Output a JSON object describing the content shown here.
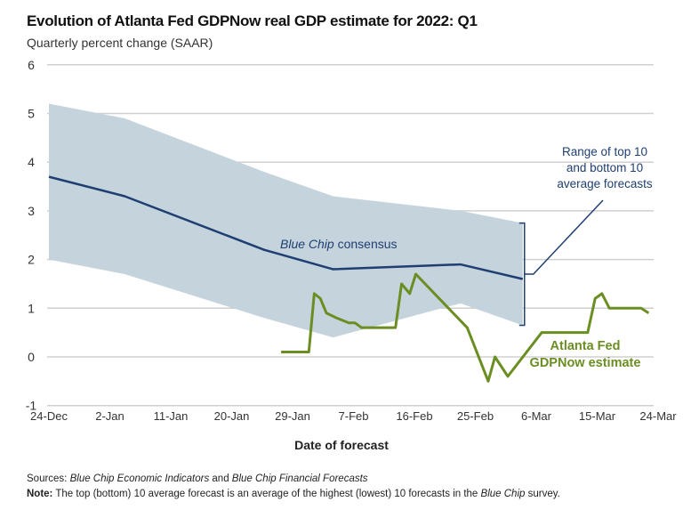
{
  "chart_data": {
    "type": "line",
    "title": "Evolution of Atlanta Fed GDPNow real GDP estimate for 2022: Q1",
    "subtitle": "Quarterly percent change (SAAR)",
    "xlabel": "Date of forecast",
    "ylabel": "",
    "ylim": [
      -1,
      6
    ],
    "yticks": [
      "-1",
      "0",
      "1",
      "2",
      "3",
      "4",
      "5",
      "6"
    ],
    "xticks": [
      "24-Dec",
      "2-Jan",
      "11-Jan",
      "20-Jan",
      "29-Jan",
      "7-Feb",
      "16-Feb",
      "25-Feb",
      "6-Mar",
      "15-Mar",
      "24-Mar"
    ],
    "x_unit": "days since 24-Dec",
    "xlim": [
      0,
      90
    ],
    "series": [
      {
        "name": "Blue Chip consensus",
        "color": "#1f3f73",
        "x": [
          0,
          11.2,
          31.8,
          42,
          60.8,
          70
        ],
        "values": [
          3.7,
          3.3,
          2.2,
          1.8,
          1.9,
          1.6
        ]
      },
      {
        "name": "Atlanta Fed GDPNow estimate",
        "color": "#6b8e23",
        "x": [
          34.3,
          38.4,
          39.2,
          40.1,
          41,
          42.5,
          44.3,
          45.2,
          46.2,
          51.2,
          52.1,
          53.3,
          54.2,
          61.8,
          64.9,
          65.9,
          67.8,
          72.8,
          79.6,
          80.7,
          81.7,
          82.8,
          87.5,
          88.6
        ],
        "values": [
          0.1,
          0.1,
          1.3,
          1.2,
          0.9,
          0.8,
          0.7,
          0.7,
          0.6,
          0.6,
          1.5,
          1.3,
          1.7,
          0.6,
          -0.5,
          0,
          -0.4,
          0.5,
          0.5,
          1.2,
          1.3,
          1.0,
          1.0,
          0.9
        ]
      }
    ],
    "band": {
      "name": "Range of top 10 and bottom 10 average forecasts",
      "color": "#c5d3dc",
      "x": [
        0,
        11.2,
        31.8,
        42,
        60.8,
        70
      ],
      "upper": [
        5.2,
        4.9,
        3.8,
        3.3,
        3.0,
        2.75
      ],
      "lower": [
        2.0,
        1.7,
        0.8,
        0.4,
        1.1,
        0.65
      ]
    },
    "annotations": {
      "consensus": "Blue Chip consensus",
      "band_lines": [
        "Range of top 10",
        "and bottom 10",
        "average forecasts"
      ],
      "gdpnow_lines": [
        "Atlanta Fed",
        "GDPNow estimate"
      ]
    },
    "grid": true,
    "legend": "none"
  },
  "notes": {
    "sources_label": "Sources:",
    "sources_a": "Blue Chip Economic Indicators",
    "sources_and": " and ",
    "sources_b": "Blue Chip Financial Forecasts",
    "note_label": "Note:",
    "note_text": " The top (bottom) 10 average forecast is an average of the highest (lowest) 10 forecasts in the ",
    "note_italic": "Blue Chip",
    "note_end": " survey."
  }
}
